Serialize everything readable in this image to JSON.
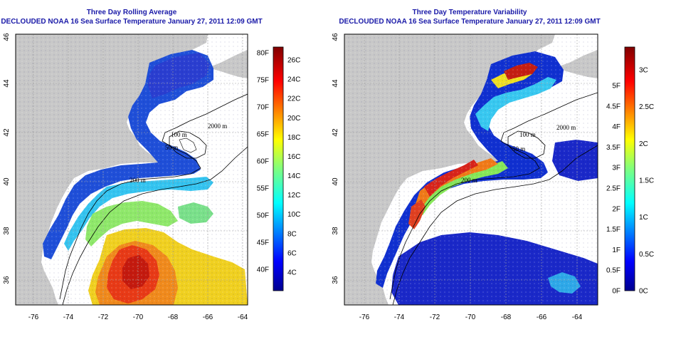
{
  "colors": {
    "land": "#c8c8c8",
    "water": "#ffffff",
    "title": "#1a1aa8",
    "grid": "#a0a0a0"
  },
  "grid": "on",
  "left_panel": {
    "title": "Three Day Rolling Average",
    "subtitle": "DECLOUDED NOAA 16 Sea Surface Temperature January 27, 2011 12:09 GMT",
    "x_ticks": [
      "-76",
      "-74",
      "-72",
      "-70",
      "-68",
      "-66",
      "-64"
    ],
    "y_ticks": [
      "36",
      "38",
      "40",
      "42",
      "44",
      "46"
    ],
    "contour_labels": [
      "200 m",
      "100 m",
      "2000 m",
      "50 m"
    ],
    "colorbar": {
      "left_labels_f": [
        "40F",
        "45F",
        "50F",
        "55F",
        "60F",
        "65F",
        "70F",
        "75F",
        "80F"
      ],
      "right_labels_c": [
        "4C",
        "6C",
        "8C",
        "10C",
        "12C",
        "14C",
        "16C",
        "18C",
        "20C",
        "22C",
        "24C",
        "26C"
      ]
    }
  },
  "right_panel": {
    "title": "Three Day Temperature Variability",
    "subtitle": "DECLOUDED NOAA 16 Sea Surface Temperature January 27, 2011 12:09 GMT",
    "x_ticks": [
      "-76",
      "-74",
      "-72",
      "-70",
      "-68",
      "-66",
      "-64"
    ],
    "y_ticks": [
      "36",
      "38",
      "40",
      "42",
      "44",
      "46"
    ],
    "contour_labels": [
      "200 m",
      "100 m",
      "2000 m",
      "50 m"
    ],
    "colorbar": {
      "left_labels_f": [
        "0F",
        "0.5F",
        "1F",
        "1.5F",
        "2F",
        "2.5F",
        "3F",
        "3.5F",
        "4F",
        "4.5F",
        "5F"
      ],
      "right_labels_c": [
        "0C",
        "0.5C",
        "1C",
        "1.5C",
        "2C",
        "2.5C",
        "3C"
      ]
    }
  }
}
